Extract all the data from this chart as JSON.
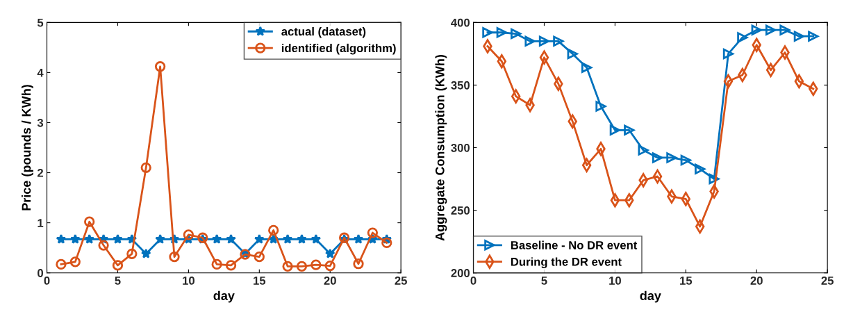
{
  "chart_data": [
    {
      "type": "line",
      "xlabel": "day",
      "ylabel": "Price (pounds / KWh)",
      "x": [
        1,
        2,
        3,
        4,
        5,
        6,
        7,
        8,
        9,
        10,
        11,
        12,
        13,
        14,
        15,
        16,
        17,
        18,
        19,
        20,
        21,
        22,
        23,
        24
      ],
      "xlim": [
        0,
        25
      ],
      "xticks": [
        0,
        5,
        10,
        15,
        20,
        25
      ],
      "ylim": [
        0,
        5
      ],
      "yticks": [
        0,
        1,
        2,
        3,
        4,
        5
      ],
      "grid": false,
      "legend": "top right",
      "series": [
        {
          "name": "actual (dataset)",
          "color": "#0072bd",
          "marker": "star",
          "values": [
            0.67,
            0.67,
            0.67,
            0.67,
            0.67,
            0.67,
            0.38,
            0.67,
            0.67,
            0.67,
            0.67,
            0.67,
            0.67,
            0.38,
            0.67,
            0.67,
            0.67,
            0.67,
            0.67,
            0.38,
            0.67,
            0.67,
            0.67,
            0.67
          ]
        },
        {
          "name": "identified (algorithm)",
          "color": "#d95319",
          "marker": "circle",
          "values": [
            0.17,
            0.22,
            1.02,
            0.55,
            0.15,
            0.38,
            2.1,
            4.12,
            0.32,
            0.76,
            0.7,
            0.17,
            0.15,
            0.37,
            0.32,
            0.85,
            0.13,
            0.13,
            0.16,
            0.14,
            0.7,
            0.18,
            0.8,
            0.6
          ]
        }
      ]
    },
    {
      "type": "line",
      "xlabel": "day",
      "ylabel": "Aggregate Consumption (KWh)",
      "x": [
        1,
        2,
        3,
        4,
        5,
        6,
        7,
        8,
        9,
        10,
        11,
        12,
        13,
        14,
        15,
        16,
        17,
        18,
        19,
        20,
        21,
        22,
        23,
        24
      ],
      "xlim": [
        0,
        25
      ],
      "xticks": [
        0,
        5,
        10,
        15,
        20,
        25
      ],
      "ylim": [
        200,
        400
      ],
      "yticks": [
        200,
        250,
        300,
        350,
        400
      ],
      "grid": false,
      "legend": "bottom left",
      "series": [
        {
          "name": "Baseline - No DR event",
          "color": "#0072bd",
          "marker": "triangle",
          "values": [
            392,
            392,
            391,
            385,
            385,
            385,
            375,
            364,
            333,
            314,
            314,
            298,
            292,
            292,
            290,
            283,
            275,
            375,
            388,
            394,
            394,
            394,
            389,
            389
          ]
        },
        {
          "name": "During the DR event",
          "color": "#d95319",
          "marker": "diamond",
          "values": [
            381,
            369,
            341,
            334,
            372,
            351,
            321,
            286,
            299,
            258,
            258,
            274,
            277,
            261,
            259,
            237,
            265,
            353,
            358,
            382,
            362,
            376,
            353,
            347
          ]
        }
      ]
    }
  ]
}
